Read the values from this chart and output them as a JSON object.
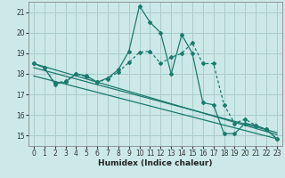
{
  "xlabel": "Humidex (Indice chaleur)",
  "bg_color": "#cce8e8",
  "grid_color": "#aacccc",
  "line_color": "#1a7a6e",
  "xlim": [
    -0.5,
    23.5
  ],
  "ylim": [
    14.5,
    21.5
  ],
  "xticks": [
    0,
    1,
    2,
    3,
    4,
    5,
    6,
    7,
    8,
    9,
    10,
    11,
    12,
    13,
    14,
    15,
    16,
    17,
    18,
    19,
    20,
    21,
    22,
    23
  ],
  "yticks": [
    15,
    16,
    17,
    18,
    19,
    20,
    21
  ],
  "line_main": {
    "x": [
      0,
      1,
      2,
      3,
      4,
      5,
      6,
      7,
      8,
      9,
      10,
      11,
      12,
      13,
      14,
      15,
      16,
      17,
      18,
      19,
      20,
      21,
      22,
      23
    ],
    "y": [
      18.5,
      18.3,
      17.5,
      17.6,
      18.0,
      17.9,
      17.6,
      17.8,
      18.2,
      19.1,
      21.3,
      20.5,
      20.0,
      18.0,
      19.9,
      19.0,
      16.6,
      16.5,
      15.1,
      15.1,
      15.6,
      15.5,
      15.3,
      14.85
    ]
  },
  "line_upper": {
    "x": [
      0,
      1,
      2,
      3,
      4,
      5,
      6,
      7,
      8,
      9,
      10,
      11,
      12,
      13,
      14,
      15,
      16,
      17,
      18,
      19,
      20,
      21,
      22,
      23
    ],
    "y": [
      18.5,
      18.3,
      17.55,
      17.65,
      18.0,
      17.85,
      17.6,
      17.75,
      18.1,
      18.55,
      19.05,
      19.1,
      18.5,
      18.8,
      19.0,
      19.5,
      18.5,
      18.5,
      16.5,
      15.6,
      15.8,
      15.5,
      15.3,
      14.85
    ]
  },
  "reg1": {
    "x": [
      0,
      23
    ],
    "y": [
      18.5,
      15.05
    ]
  },
  "reg2": {
    "x": [
      0,
      23
    ],
    "y": [
      18.3,
      15.15
    ]
  },
  "reg3": {
    "x": [
      0,
      23
    ],
    "y": [
      17.9,
      14.85
    ]
  }
}
